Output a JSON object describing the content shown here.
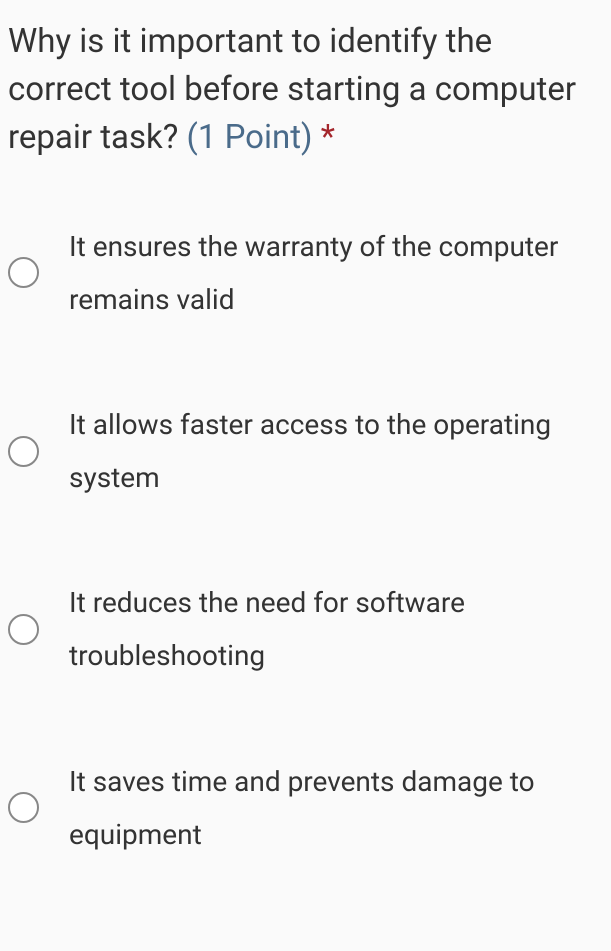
{
  "question": {
    "text": "Why is it important to identify the correct tool before starting a computer repair task?",
    "points_label": "(1 Point)",
    "required_marker": "*"
  },
  "options": [
    {
      "label": "It ensures the warranty of the com­puter remains valid"
    },
    {
      "label": "It allows faster access to the operat­ing system"
    },
    {
      "label": "It reduces the need for software troubleshooting"
    },
    {
      "label": "It saves time and prevents damage to equipment"
    }
  ]
}
